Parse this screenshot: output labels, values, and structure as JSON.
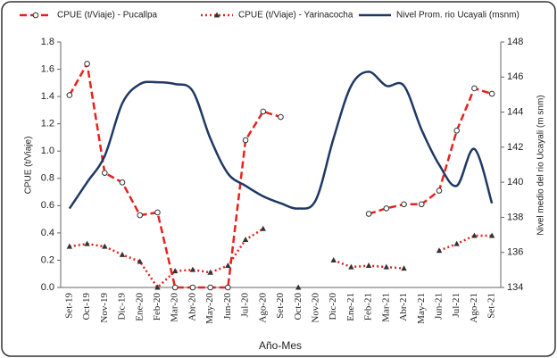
{
  "chart_data": {
    "type": "line",
    "categories": [
      "Set-19",
      "Oct-19",
      "Nov-19",
      "Dic-19",
      "Ene-20",
      "Feb-20",
      "Mar-20",
      "Abr-20",
      "May-20",
      "Jun-20",
      "Jul-20",
      "Ago-20",
      "Set-20",
      "Oct-20",
      "Nov-20",
      "Dic-20",
      "Ene-21",
      "Feb-21",
      "Mar-21",
      "Abr-21",
      "May-21",
      "Jun-21",
      "Jul-21",
      "Ago-21",
      "Set-21"
    ],
    "x_label": "Año-Mes",
    "y_label": "CPUE (t/Viaje)",
    "y2_label": "Nivel medio del rio Ucayali (m snm)",
    "ylim": [
      0,
      1.8
    ],
    "yticks": [
      {
        "value": 0,
        "label": "0.0"
      },
      {
        "value": 0.2,
        "label": "0.2"
      },
      {
        "value": 0.4,
        "label": "0.4"
      },
      {
        "value": 0.6,
        "label": "0.6"
      },
      {
        "value": 0.8,
        "label": "0.8"
      },
      {
        "value": 1,
        "label": "1.0"
      },
      {
        "value": 1.2,
        "label": "1.2"
      },
      {
        "value": 1.4,
        "label": "1.4"
      },
      {
        "value": 1.6,
        "label": "1.6"
      },
      {
        "value": 1.8,
        "label": "1.8"
      }
    ],
    "y2lim": [
      134,
      148
    ],
    "y2ticks": [
      134,
      136,
      138,
      140,
      142,
      144,
      146,
      148
    ],
    "legend": "top",
    "series": [
      {
        "name": "CPUE  (t/Viaje) - Pucallpa",
        "color": "#e8211e",
        "dash": "dashed",
        "marker": "circle",
        "values": [
          1.41,
          1.64,
          0.84,
          0.77,
          0.53,
          0.55,
          0,
          0,
          0,
          0,
          1.08,
          1.29,
          1.25,
          null,
          null,
          null,
          null,
          0.54,
          0.58,
          0.61,
          0.61,
          0.71,
          1.15,
          1.46,
          1.42
        ]
      },
      {
        "name": "CPUE (t/Viaje) - Yarinacocha",
        "color": "#e8211e",
        "dash": "dotted",
        "marker": "triangle",
        "values": [
          0.3,
          0.32,
          0.3,
          0.24,
          0.19,
          0,
          0.12,
          0.13,
          0.11,
          0.16,
          0.35,
          0.43,
          null,
          0,
          null,
          0.2,
          0.15,
          0.16,
          0.15,
          0.14,
          null,
          0.27,
          0.32,
          0.38,
          0.38
        ]
      },
      {
        "name": "Nivel Prom. rio Ucayali  (msnm)",
        "color": "#1f3864",
        "dash": "solid",
        "marker": "none",
        "axis": "y2",
        "smooth": true,
        "values": [
          138.5,
          140,
          141.5,
          144.5,
          145.6,
          145.7,
          145.6,
          145.2,
          142.5,
          140.5,
          139.8,
          139.2,
          138.8,
          138.5,
          139,
          142.5,
          145.5,
          146.3,
          145.5,
          145.5,
          143,
          141,
          139.8,
          141.9,
          138.8
        ]
      }
    ]
  }
}
